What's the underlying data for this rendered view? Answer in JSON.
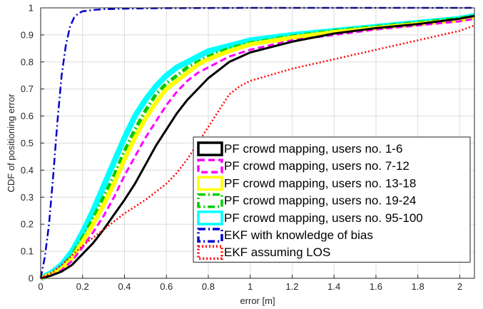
{
  "chart_data": {
    "type": "line",
    "title": "",
    "xlabel": "error [m]",
    "ylabel": "CDF of positioning error",
    "xlim": [
      0,
      2.07
    ],
    "ylim": [
      0,
      1
    ],
    "xticks": [
      0,
      0.2,
      0.4,
      0.6,
      0.8,
      1,
      1.2,
      1.4,
      1.6,
      1.8,
      2
    ],
    "xtick_labels": [
      "0",
      "0.2",
      "0.4",
      "0.6",
      "0.8",
      "1",
      "1.2",
      "1.4",
      "1.6",
      "1.8",
      "2"
    ],
    "yticks": [
      0,
      0.1,
      0.2,
      0.3,
      0.4,
      0.5,
      0.6,
      0.7,
      0.8,
      0.9,
      1
    ],
    "ytick_labels": [
      "0",
      "0.1",
      "0.2",
      "0.3",
      "0.4",
      "0.5",
      "0.6",
      "0.7",
      "0.8",
      "0.9",
      "1"
    ],
    "grid": true,
    "legend_position": "bottom-right",
    "series": [
      {
        "name": "PF crowd mapping, users no. 95-100",
        "color": "#00ffff",
        "style": "solid",
        "x": [
          0,
          0.05,
          0.1,
          0.15,
          0.2,
          0.25,
          0.3,
          0.35,
          0.4,
          0.45,
          0.5,
          0.55,
          0.6,
          0.65,
          0.7,
          0.75,
          0.8,
          0.9,
          1.0,
          1.2,
          1.4,
          1.6,
          1.8,
          2.0,
          2.07
        ],
        "y": [
          0,
          0.02,
          0.05,
          0.1,
          0.17,
          0.25,
          0.34,
          0.43,
          0.52,
          0.6,
          0.66,
          0.71,
          0.75,
          0.78,
          0.8,
          0.82,
          0.84,
          0.86,
          0.88,
          0.9,
          0.915,
          0.93,
          0.945,
          0.96,
          0.97
        ]
      },
      {
        "name": "PF crowd mapping, users no. 19-24",
        "color": "#00cc00",
        "style": "dashdot",
        "x": [
          0,
          0.05,
          0.1,
          0.15,
          0.2,
          0.25,
          0.3,
          0.35,
          0.4,
          0.45,
          0.5,
          0.55,
          0.6,
          0.65,
          0.7,
          0.75,
          0.8,
          0.9,
          1.0,
          1.2,
          1.4,
          1.6,
          1.8,
          2.0,
          2.07
        ],
        "y": [
          0,
          0.015,
          0.04,
          0.085,
          0.15,
          0.22,
          0.3,
          0.38,
          0.47,
          0.55,
          0.62,
          0.68,
          0.72,
          0.75,
          0.78,
          0.8,
          0.82,
          0.85,
          0.87,
          0.895,
          0.915,
          0.93,
          0.945,
          0.96,
          0.97
        ]
      },
      {
        "name": "PF crowd mapping, users no. 13-18",
        "color": "#ffff00",
        "style": "solid",
        "x": [
          0,
          0.05,
          0.1,
          0.15,
          0.2,
          0.25,
          0.3,
          0.35,
          0.4,
          0.45,
          0.5,
          0.55,
          0.6,
          0.65,
          0.7,
          0.75,
          0.8,
          0.9,
          1.0,
          1.2,
          1.4,
          1.6,
          1.8,
          2.0,
          2.07
        ],
        "y": [
          0,
          0.015,
          0.035,
          0.075,
          0.135,
          0.2,
          0.27,
          0.35,
          0.44,
          0.52,
          0.59,
          0.65,
          0.7,
          0.73,
          0.76,
          0.79,
          0.81,
          0.84,
          0.865,
          0.89,
          0.91,
          0.925,
          0.94,
          0.955,
          0.965
        ]
      },
      {
        "name": "PF crowd mapping, users no. 7-12",
        "color": "#ff00ff",
        "style": "dashed",
        "x": [
          0,
          0.05,
          0.1,
          0.15,
          0.2,
          0.25,
          0.3,
          0.35,
          0.4,
          0.45,
          0.5,
          0.55,
          0.6,
          0.65,
          0.7,
          0.75,
          0.8,
          0.9,
          1.0,
          1.2,
          1.4,
          1.6,
          1.8,
          2.0,
          2.07
        ],
        "y": [
          0,
          0.01,
          0.03,
          0.065,
          0.115,
          0.17,
          0.23,
          0.3,
          0.38,
          0.45,
          0.52,
          0.58,
          0.64,
          0.69,
          0.73,
          0.76,
          0.78,
          0.82,
          0.845,
          0.88,
          0.9,
          0.92,
          0.935,
          0.95,
          0.96
        ]
      },
      {
        "name": "PF crowd mapping, users no. 1-6",
        "color": "#000000",
        "style": "solid",
        "x": [
          0,
          0.05,
          0.1,
          0.15,
          0.2,
          0.25,
          0.3,
          0.35,
          0.4,
          0.45,
          0.5,
          0.55,
          0.6,
          0.65,
          0.7,
          0.75,
          0.8,
          0.85,
          0.9,
          1.0,
          1.2,
          1.4,
          1.6,
          1.8,
          2.0,
          2.07
        ],
        "y": [
          0,
          0.01,
          0.025,
          0.05,
          0.09,
          0.13,
          0.18,
          0.235,
          0.29,
          0.35,
          0.42,
          0.49,
          0.55,
          0.61,
          0.66,
          0.7,
          0.74,
          0.77,
          0.8,
          0.835,
          0.875,
          0.905,
          0.925,
          0.94,
          0.96,
          0.97
        ]
      },
      {
        "name": "EKF with knowledge of bias",
        "color": "#0000cc",
        "style": "dashdot",
        "x": [
          0,
          0.02,
          0.04,
          0.06,
          0.08,
          0.1,
          0.12,
          0.14,
          0.16,
          0.18,
          0.2,
          0.25,
          0.3,
          0.4,
          0.6,
          1.0,
          1.5,
          2.07
        ],
        "y": [
          0,
          0.08,
          0.2,
          0.38,
          0.58,
          0.75,
          0.86,
          0.93,
          0.965,
          0.98,
          0.987,
          0.992,
          0.995,
          0.997,
          0.999,
          1,
          1,
          1
        ]
      },
      {
        "name": "EKF assuming LOS",
        "color": "#ff0000",
        "style": "dotted",
        "x": [
          0,
          0.05,
          0.1,
          0.15,
          0.2,
          0.3,
          0.4,
          0.5,
          0.6,
          0.65,
          0.7,
          0.75,
          0.8,
          0.85,
          0.9,
          0.95,
          1.0,
          1.2,
          1.4,
          1.6,
          1.8,
          2.0,
          2.07
        ],
        "y": [
          0,
          0.02,
          0.05,
          0.085,
          0.12,
          0.18,
          0.24,
          0.29,
          0.35,
          0.39,
          0.44,
          0.5,
          0.56,
          0.62,
          0.68,
          0.71,
          0.73,
          0.775,
          0.81,
          0.845,
          0.88,
          0.915,
          0.935
        ]
      }
    ],
    "legend": [
      {
        "label": "PF crowd mapping, users no. 1-6",
        "color": "#000000",
        "style": "solid"
      },
      {
        "label": "PF crowd mapping, users no. 7-12",
        "color": "#ff00ff",
        "style": "dashed"
      },
      {
        "label": "PF crowd mapping, users no. 13-18",
        "color": "#ffff00",
        "style": "solid"
      },
      {
        "label": "PF crowd mapping, users no. 19-24",
        "color": "#00cc00",
        "style": "dashdot"
      },
      {
        "label": "PF crowd mapping, users no. 95-100",
        "color": "#00ffff",
        "style": "solid"
      },
      {
        "label": "EKF with knowledge of bias",
        "color": "#0000cc",
        "style": "dashdot"
      },
      {
        "label": "EKF assuming LOS",
        "color": "#ff0000",
        "style": "dotted"
      }
    ]
  }
}
